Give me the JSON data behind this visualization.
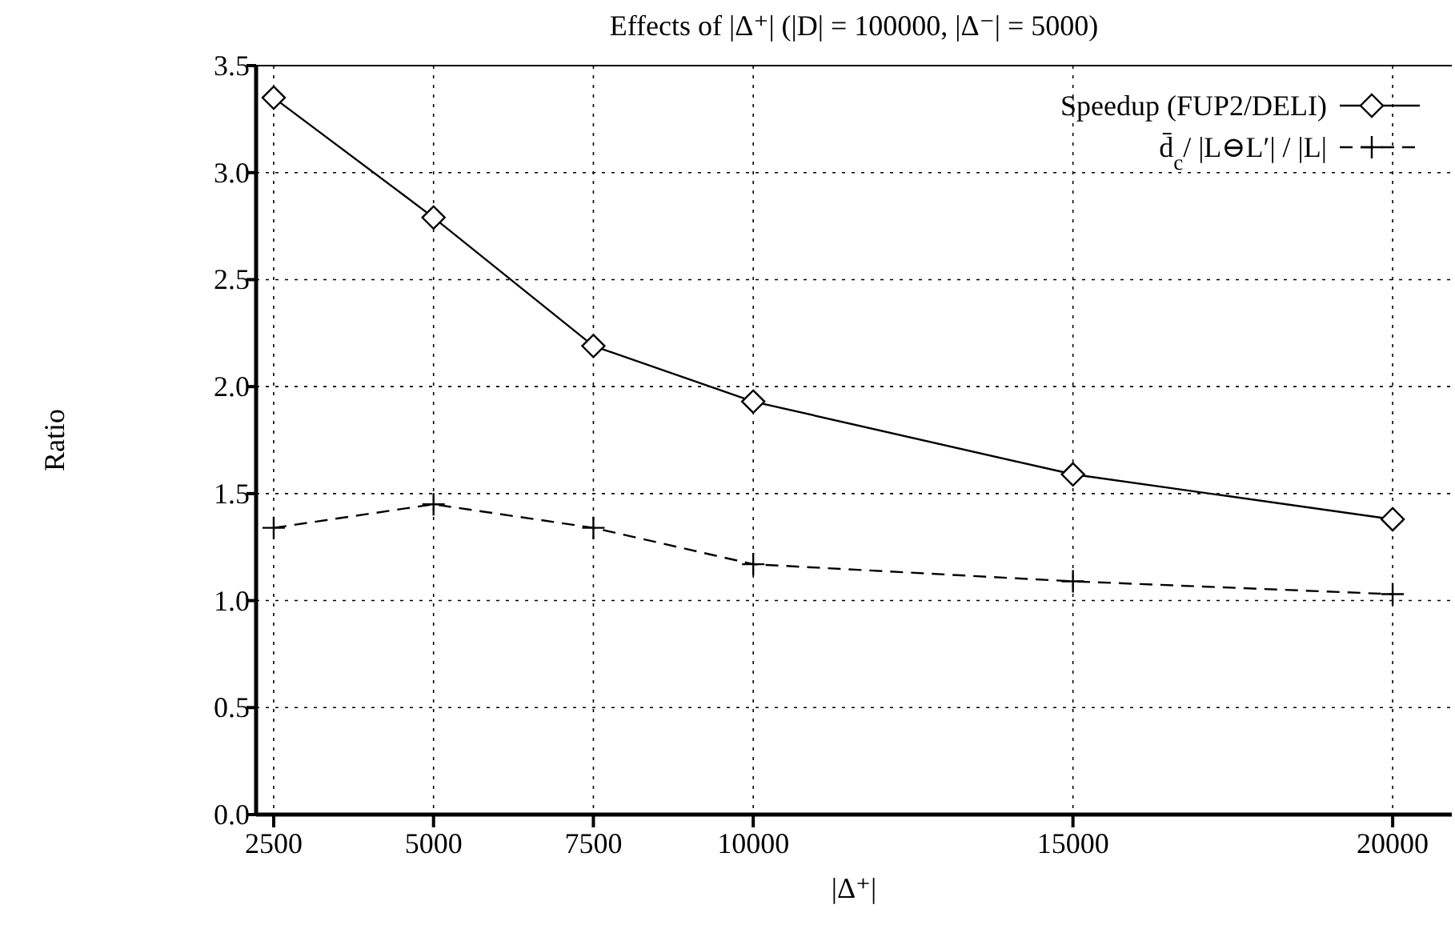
{
  "chart_data": {
    "type": "line",
    "title": "Effects of |Δ⁺| (|D| = 100000, |Δ⁻| = 5000)",
    "xlabel": "|Δ⁺|",
    "ylabel": "Ratio",
    "x": [
      2500,
      5000,
      7500,
      10000,
      15000,
      20000
    ],
    "series": [
      {
        "name": "Speedup (FUP2/DELI)",
        "color": "#000000",
        "marker": "diamond",
        "line_style": "solid",
        "values": [
          3.35,
          2.79,
          2.19,
          1.93,
          1.59,
          1.38
        ]
      },
      {
        "name": "d̄$_{c}$/ |L⊖L′| / |L|",
        "color": "#000000",
        "marker": "cross",
        "line_style": "dashed",
        "values": [
          1.34,
          1.45,
          1.34,
          1.17,
          1.09,
          1.03
        ]
      }
    ],
    "xlim": [
      2225,
      20925
    ],
    "xticks": [
      2500,
      5000,
      7500,
      10000,
      15000,
      20000
    ],
    "ylim": [
      0,
      3.5
    ],
    "yticks": [
      {
        "value": 0,
        "label": "0.0"
      },
      0.5,
      {
        "value": 1,
        "label": "1.0"
      },
      1.5,
      {
        "value": 2,
        "label": "2.0"
      },
      2.5,
      {
        "value": 3,
        "label": "3.0"
      },
      3.5
    ],
    "grid": true,
    "legend": "top right"
  }
}
